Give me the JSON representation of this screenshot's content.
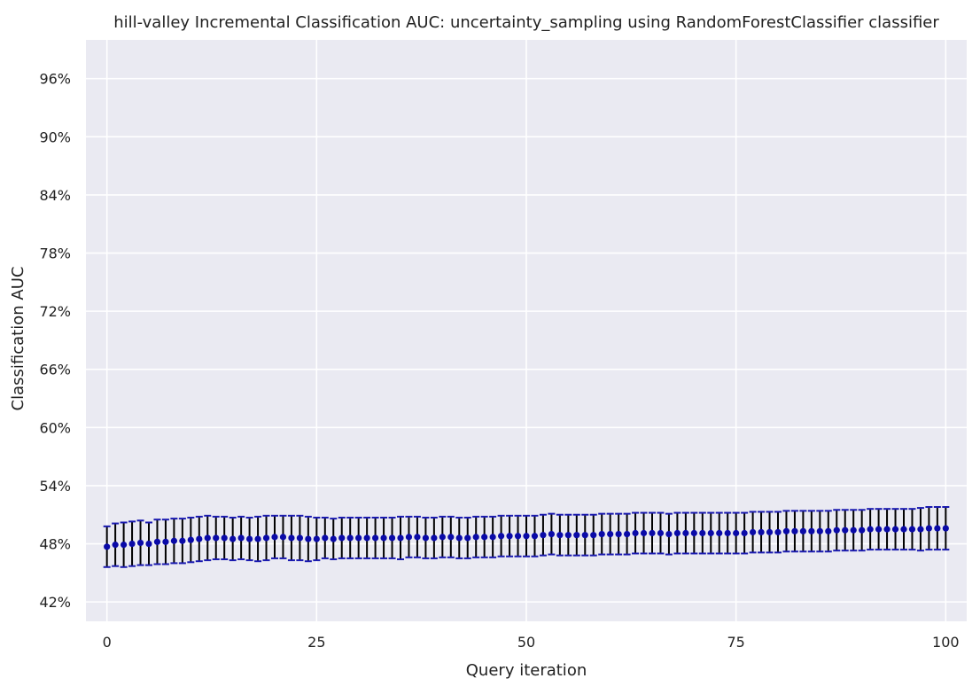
{
  "chart_data": {
    "type": "scatter",
    "title": "hill-valley Incremental Classification AUC: uncertainty_sampling using RandomForestClassifier classifier",
    "xlabel": "Query iteration",
    "ylabel": "Classification AUC",
    "xlim": [
      -2.5,
      102.5
    ],
    "ylim": [
      0.4,
      1.0
    ],
    "x_ticks": [
      0,
      25,
      50,
      75,
      100
    ],
    "x_tick_labels": [
      "0",
      "25",
      "50",
      "75",
      "100"
    ],
    "y_ticks": [
      0.42,
      0.48,
      0.54,
      0.6,
      0.66,
      0.72,
      0.78,
      0.84,
      0.9,
      0.96
    ],
    "y_tick_labels": [
      "42%",
      "48%",
      "54%",
      "60%",
      "66%",
      "72%",
      "78%",
      "84%",
      "90%",
      "96%"
    ],
    "grid": true,
    "background_color": "#eaeaf2",
    "grid_color": "#ffffff",
    "marker_color": "#0a0aa8",
    "errorbar_color": "#000000",
    "cap_color": "#1a1ab0",
    "series": [
      {
        "x": [
          0,
          1,
          2,
          3,
          4,
          5,
          6,
          7,
          8,
          9,
          10,
          11,
          12,
          13,
          14,
          15,
          16,
          17,
          18,
          19,
          20,
          21,
          22,
          23,
          24,
          25,
          26,
          27,
          28,
          29,
          30,
          31,
          32,
          33,
          34,
          35,
          36,
          37,
          38,
          39,
          40,
          41,
          42,
          43,
          44,
          45,
          46,
          47,
          48,
          49,
          50,
          51,
          52,
          53,
          54,
          55,
          56,
          57,
          58,
          59,
          60,
          61,
          62,
          63,
          64,
          65,
          66,
          67,
          68,
          69,
          70,
          71,
          72,
          73,
          74,
          75,
          76,
          77,
          78,
          79,
          80,
          81,
          82,
          83,
          84,
          85,
          86,
          87,
          88,
          89,
          90,
          91,
          92,
          93,
          94,
          95,
          96,
          97,
          98,
          99,
          100
        ],
        "y": [
          0.477,
          0.479,
          0.479,
          0.48,
          0.481,
          0.48,
          0.482,
          0.482,
          0.483,
          0.483,
          0.484,
          0.485,
          0.486,
          0.486,
          0.486,
          0.485,
          0.486,
          0.485,
          0.485,
          0.486,
          0.487,
          0.487,
          0.486,
          0.486,
          0.485,
          0.485,
          0.486,
          0.485,
          0.486,
          0.486,
          0.486,
          0.486,
          0.486,
          0.486,
          0.486,
          0.486,
          0.487,
          0.487,
          0.486,
          0.486,
          0.487,
          0.487,
          0.486,
          0.486,
          0.487,
          0.487,
          0.487,
          0.488,
          0.488,
          0.488,
          0.488,
          0.488,
          0.489,
          0.49,
          0.489,
          0.489,
          0.489,
          0.489,
          0.489,
          0.49,
          0.49,
          0.49,
          0.49,
          0.491,
          0.491,
          0.491,
          0.491,
          0.49,
          0.491,
          0.491,
          0.491,
          0.491,
          0.491,
          0.491,
          0.491,
          0.491,
          0.491,
          0.492,
          0.492,
          0.492,
          0.492,
          0.493,
          0.493,
          0.493,
          0.493,
          0.493,
          0.493,
          0.494,
          0.494,
          0.494,
          0.494,
          0.495,
          0.495,
          0.495,
          0.495,
          0.495,
          0.495,
          0.495,
          0.496,
          0.496,
          0.496
        ],
        "yerr": [
          0.021,
          0.022,
          0.023,
          0.023,
          0.023,
          0.022,
          0.023,
          0.023,
          0.023,
          0.023,
          0.023,
          0.023,
          0.023,
          0.022,
          0.022,
          0.022,
          0.022,
          0.022,
          0.023,
          0.023,
          0.022,
          0.022,
          0.023,
          0.023,
          0.023,
          0.022,
          0.021,
          0.021,
          0.021,
          0.021,
          0.021,
          0.021,
          0.021,
          0.021,
          0.021,
          0.022,
          0.021,
          0.021,
          0.021,
          0.021,
          0.021,
          0.021,
          0.021,
          0.021,
          0.021,
          0.021,
          0.021,
          0.021,
          0.021,
          0.021,
          0.021,
          0.021,
          0.021,
          0.021,
          0.021,
          0.021,
          0.021,
          0.021,
          0.021,
          0.021,
          0.021,
          0.021,
          0.021,
          0.021,
          0.021,
          0.021,
          0.021,
          0.021,
          0.021,
          0.021,
          0.021,
          0.021,
          0.021,
          0.021,
          0.021,
          0.021,
          0.021,
          0.021,
          0.021,
          0.021,
          0.021,
          0.021,
          0.021,
          0.021,
          0.021,
          0.021,
          0.021,
          0.021,
          0.021,
          0.021,
          0.021,
          0.021,
          0.021,
          0.021,
          0.021,
          0.021,
          0.021,
          0.022,
          0.022,
          0.022,
          0.022
        ]
      }
    ]
  }
}
